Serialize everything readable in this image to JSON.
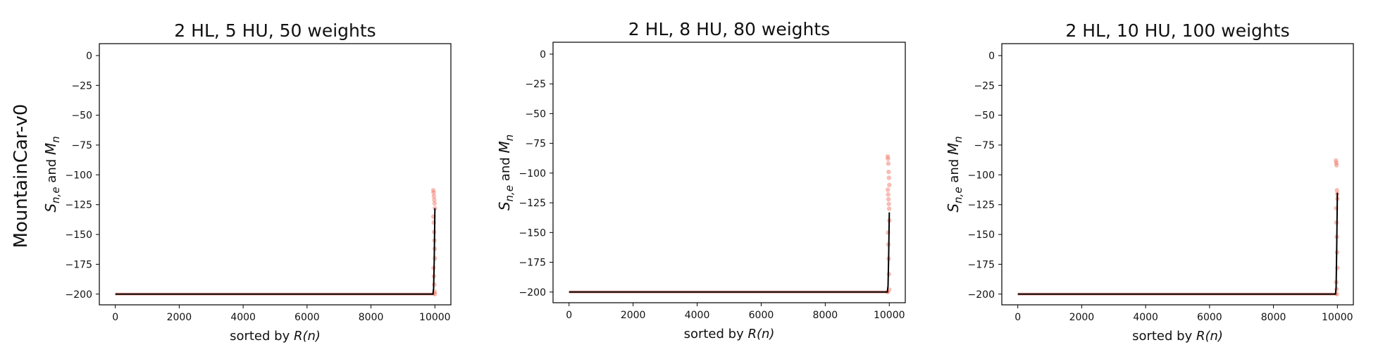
{
  "figure": {
    "row_label": "MountainCar-v0"
  },
  "chart_data": [
    {
      "type": "scatter",
      "title": "2 HL, 5 HU, 50 weights",
      "xlabel_prefix": "sorted by ",
      "xlabel_math": "R(n)",
      "ylabel": "S_{n,e} and M_n",
      "xlim": [
        -500,
        10500
      ],
      "ylim": [
        -209,
        10
      ],
      "xticks": [
        0,
        2000,
        4000,
        6000,
        8000,
        10000
      ],
      "yticks": [
        0,
        -25,
        -50,
        -75,
        -100,
        -125,
        -150,
        -175,
        -200
      ],
      "grid": false,
      "series": [
        {
          "role": "S_{n,e}",
          "color": "#f06b5b",
          "points": [
            [
              9950,
              -113
            ],
            [
              9960,
              -115
            ],
            [
              9970,
              -118
            ],
            [
              9980,
              -121
            ],
            [
              9990,
              -124
            ],
            [
              10000,
              -128
            ],
            [
              9955,
              -135
            ],
            [
              9965,
              -140
            ],
            [
              9975,
              -148
            ],
            [
              9985,
              -155
            ],
            [
              9995,
              -162
            ],
            [
              10000,
              -170
            ],
            [
              9960,
              -178
            ],
            [
              9970,
              -185
            ],
            [
              9980,
              -192
            ],
            [
              9990,
              -198
            ],
            [
              10000,
              -200
            ]
          ]
        },
        {
          "role": "M_n",
          "color": "#000000",
          "x": [
            0,
            9940,
            9960,
            9980,
            10000
          ],
          "y": [
            -200,
            -200,
            -195,
            -170,
            -128
          ]
        }
      ]
    },
    {
      "type": "scatter",
      "title": "2 HL, 8 HU, 80 weights",
      "xlabel_prefix": "sorted by ",
      "xlabel_math": "R(n)",
      "ylabel": "S_{n,e} and M_n",
      "xlim": [
        -500,
        10500
      ],
      "ylim": [
        -209,
        10
      ],
      "xticks": [
        0,
        2000,
        4000,
        6000,
        8000,
        10000
      ],
      "yticks": [
        0,
        -25,
        -50,
        -75,
        -100,
        -125,
        -150,
        -175,
        -200
      ],
      "grid": false,
      "series": [
        {
          "role": "S_{n,e}",
          "color": "#f06b5b",
          "points": [
            [
              9950,
              -86
            ],
            [
              9960,
              -88
            ],
            [
              9970,
              -92
            ],
            [
              9980,
              -99
            ],
            [
              9990,
              -104
            ],
            [
              10000,
              -110
            ],
            [
              9955,
              -114
            ],
            [
              9965,
              -118
            ],
            [
              9975,
              -122
            ],
            [
              9985,
              -126
            ],
            [
              9995,
              -130
            ],
            [
              10000,
              -140
            ],
            [
              9960,
              -150
            ],
            [
              9970,
              -160
            ],
            [
              9980,
              -172
            ],
            [
              9990,
              -185
            ],
            [
              10000,
              -198
            ],
            [
              9950,
              -200
            ]
          ]
        },
        {
          "role": "M_n",
          "color": "#000000",
          "x": [
            0,
            9940,
            9960,
            9980,
            10000
          ],
          "y": [
            -200,
            -200,
            -195,
            -170,
            -133
          ]
        }
      ]
    },
    {
      "type": "scatter",
      "title": "2 HL, 10 HU, 100 weights",
      "xlabel_prefix": "sorted by ",
      "xlabel_math": "R(n)",
      "ylabel": "S_{n,e} and M_n",
      "xlim": [
        -500,
        10500
      ],
      "ylim": [
        -209,
        10
      ],
      "xticks": [
        0,
        2000,
        4000,
        6000,
        8000,
        10000
      ],
      "yticks": [
        0,
        -25,
        -50,
        -75,
        -100,
        -125,
        -150,
        -175,
        -200
      ],
      "grid": false,
      "series": [
        {
          "role": "S_{n,e}",
          "color": "#f06b5b",
          "points": [
            [
              9955,
              -88
            ],
            [
              9965,
              -90
            ],
            [
              9975,
              -92
            ],
            [
              9985,
              -113
            ],
            [
              9995,
              -116
            ],
            [
              10000,
              -120
            ],
            [
              9960,
              -128
            ],
            [
              9970,
              -140
            ],
            [
              9980,
              -152
            ],
            [
              9990,
              -165
            ],
            [
              10000,
              -178
            ],
            [
              9965,
              -190
            ],
            [
              9975,
              -196
            ],
            [
              9985,
              -200
            ]
          ]
        },
        {
          "role": "M_n",
          "color": "#000000",
          "x": [
            0,
            9940,
            9960,
            9980,
            10000
          ],
          "y": [
            -200,
            -200,
            -195,
            -160,
            -115
          ]
        }
      ]
    }
  ]
}
